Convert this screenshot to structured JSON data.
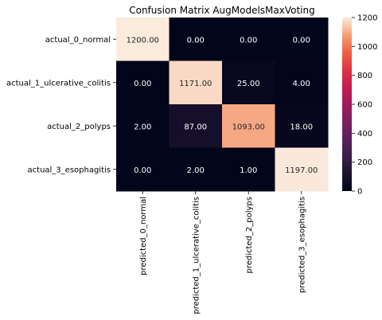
{
  "chart_data": {
    "type": "heatmap",
    "title": "Confusion Matrix AugModelsMaxVoting",
    "row_labels": [
      "actual_0_normal",
      "actual_1_ulcerative_colitis",
      "actual_2_polyps",
      "actual_3_esophagitis"
    ],
    "col_labels": [
      "predicted_0_normal",
      "predicted_1_ulcerative_colitis",
      "predicted_2_polyps",
      "predicted_3_esophagitis"
    ],
    "values": [
      [
        1200,
        0,
        0,
        0
      ],
      [
        0,
        1171,
        25,
        4
      ],
      [
        2,
        87,
        1093,
        18
      ],
      [
        0,
        2,
        1,
        1197
      ]
    ],
    "cell_labels": [
      [
        "1200.00",
        "0.00",
        "0.00",
        "0.00"
      ],
      [
        "0.00",
        "1171.00",
        "25.00",
        "4.00"
      ],
      [
        "2.00",
        "87.00",
        "1093.00",
        "18.00"
      ],
      [
        "0.00",
        "2.00",
        "1.00",
        "1197.00"
      ]
    ],
    "colorbar": {
      "colormap": "rocket",
      "vmin": 0,
      "vmax": 1200,
      "ticks": [
        0,
        200,
        400,
        600,
        800,
        1000,
        1200
      ],
      "tick_labels": [
        "0",
        "200",
        "400",
        "600",
        "800",
        "1000",
        "1200"
      ]
    }
  }
}
